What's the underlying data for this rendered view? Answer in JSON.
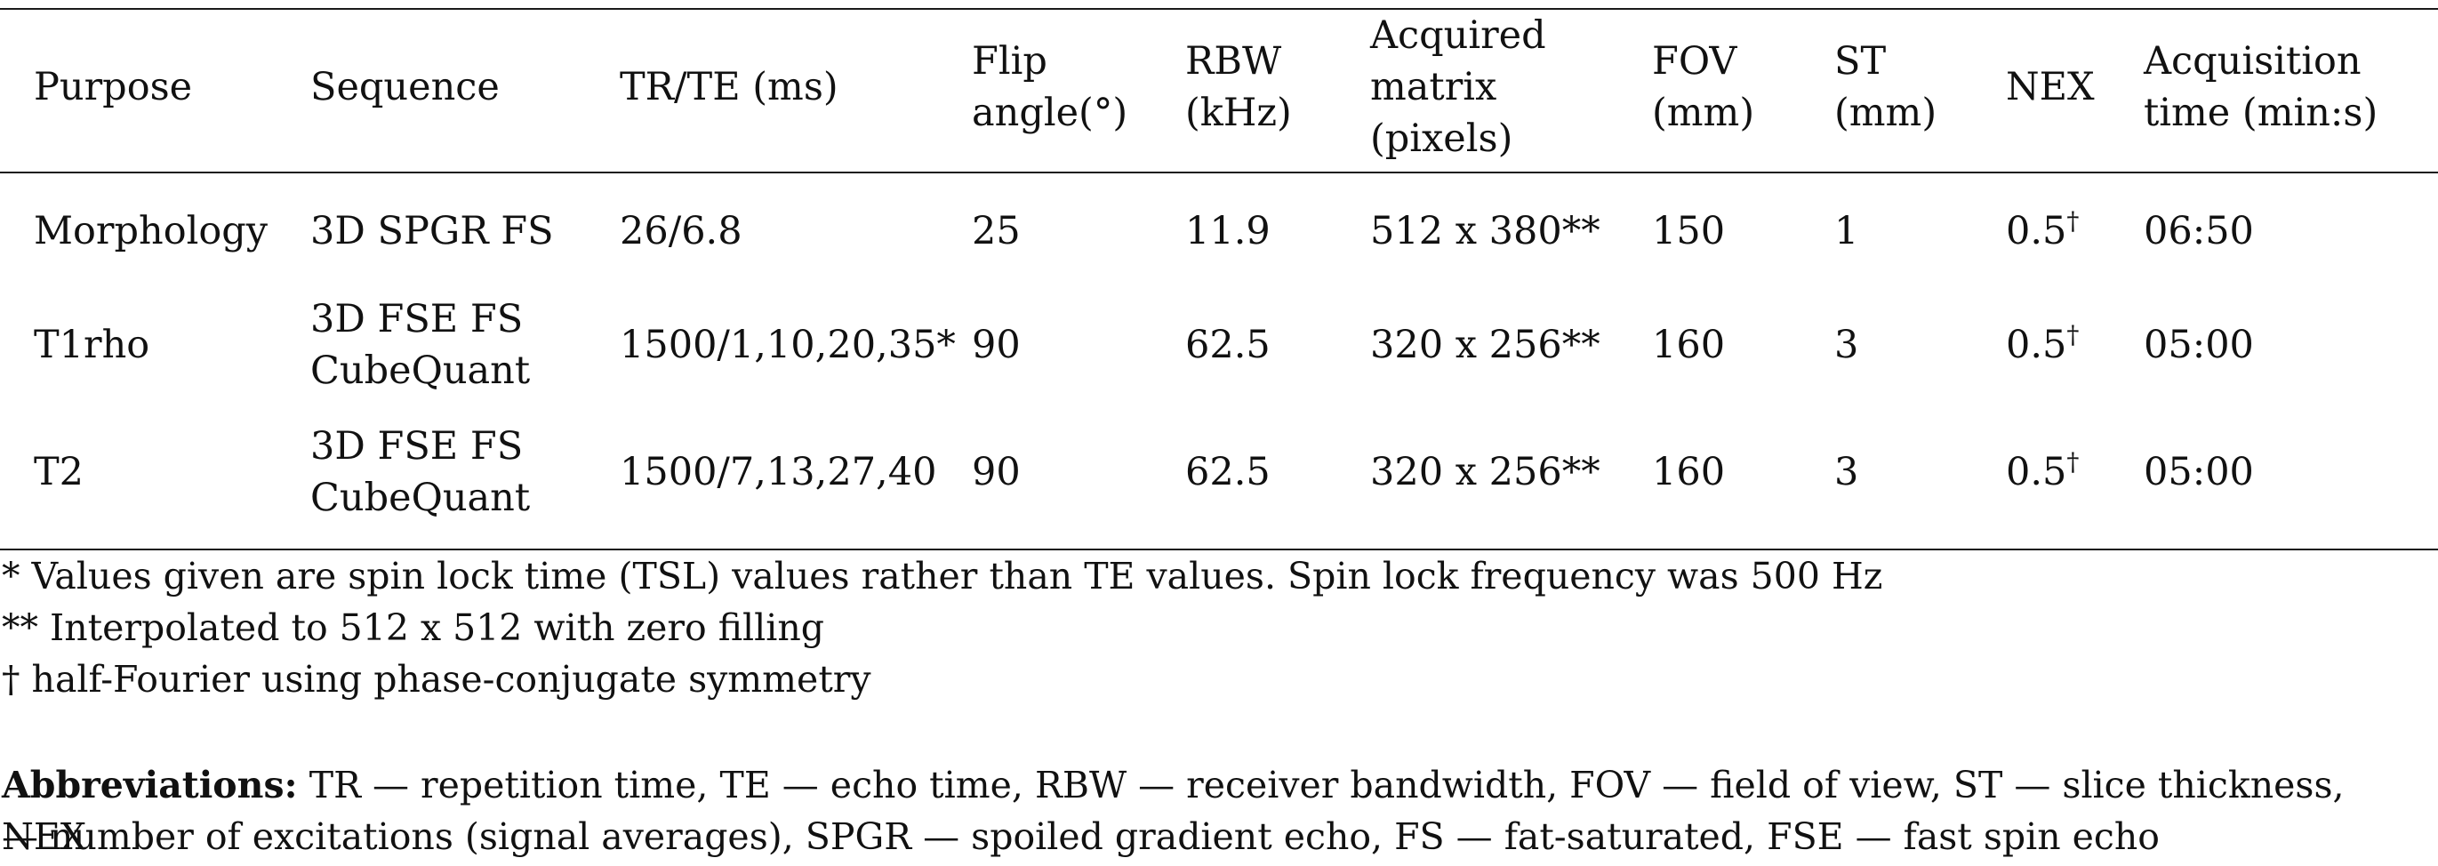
{
  "table": {
    "headers": [
      [
        "Purpose"
      ],
      [
        "Sequence"
      ],
      [
        "TR/TE (ms)"
      ],
      [
        "Flip",
        "angle(°)"
      ],
      [
        "RBW",
        "(kHz)"
      ],
      [
        "Acquired",
        "matrix",
        "(pixels)"
      ],
      [
        "FOV",
        "(mm)"
      ],
      [
        "ST",
        "(mm)"
      ],
      [
        "NEX"
      ],
      [
        "Acquisition",
        "time (min:s)"
      ]
    ],
    "rows": [
      {
        "purpose": "Morphology",
        "sequence": [
          "3D SPGR FS"
        ],
        "tr_te": "26/6.8",
        "flip": "25",
        "rbw": "11.9",
        "matrix": "512 x 380**",
        "fov": "150",
        "st": "1",
        "nex": "0.5",
        "nex_mark": "†",
        "time": "06:50"
      },
      {
        "purpose": "T1rho",
        "sequence": [
          "3D FSE FS",
          "CubeQuant"
        ],
        "tr_te": "1500/1,10,20,35*",
        "flip": "90",
        "rbw": "62.5",
        "matrix": "320 x 256**",
        "fov": "160",
        "st": "3",
        "nex": "0.5",
        "nex_mark": "†",
        "time": "05:00"
      },
      {
        "purpose": "T2",
        "sequence": [
          "3D FSE FS",
          "CubeQuant"
        ],
        "tr_te": "1500/7,13,27,40",
        "flip": "90",
        "rbw": "62.5",
        "matrix": "320 x 256**",
        "fov": "160",
        "st": "3",
        "nex": "0.5",
        "nex_mark": "†",
        "time": "05:00"
      }
    ]
  },
  "footnotes": [
    "* Values given are spin lock time (TSL) values rather than TE values. Spin lock frequency was 500 Hz",
    "** Interpolated to 512 x 512 with zero filling",
    "† half-Fourier using phase-conjugate symmetry"
  ],
  "abbreviations": {
    "label": "Abbreviations:",
    "line1": " TR — repetition time, TE — echo time, RBW — receiver bandwidth, FOV — field of view, ST — slice thickness, NEX",
    "line2": "— number of excitations (signal averages), SPGR — spoiled gradient echo, FS — fat-saturated, FSE — fast spin echo"
  }
}
